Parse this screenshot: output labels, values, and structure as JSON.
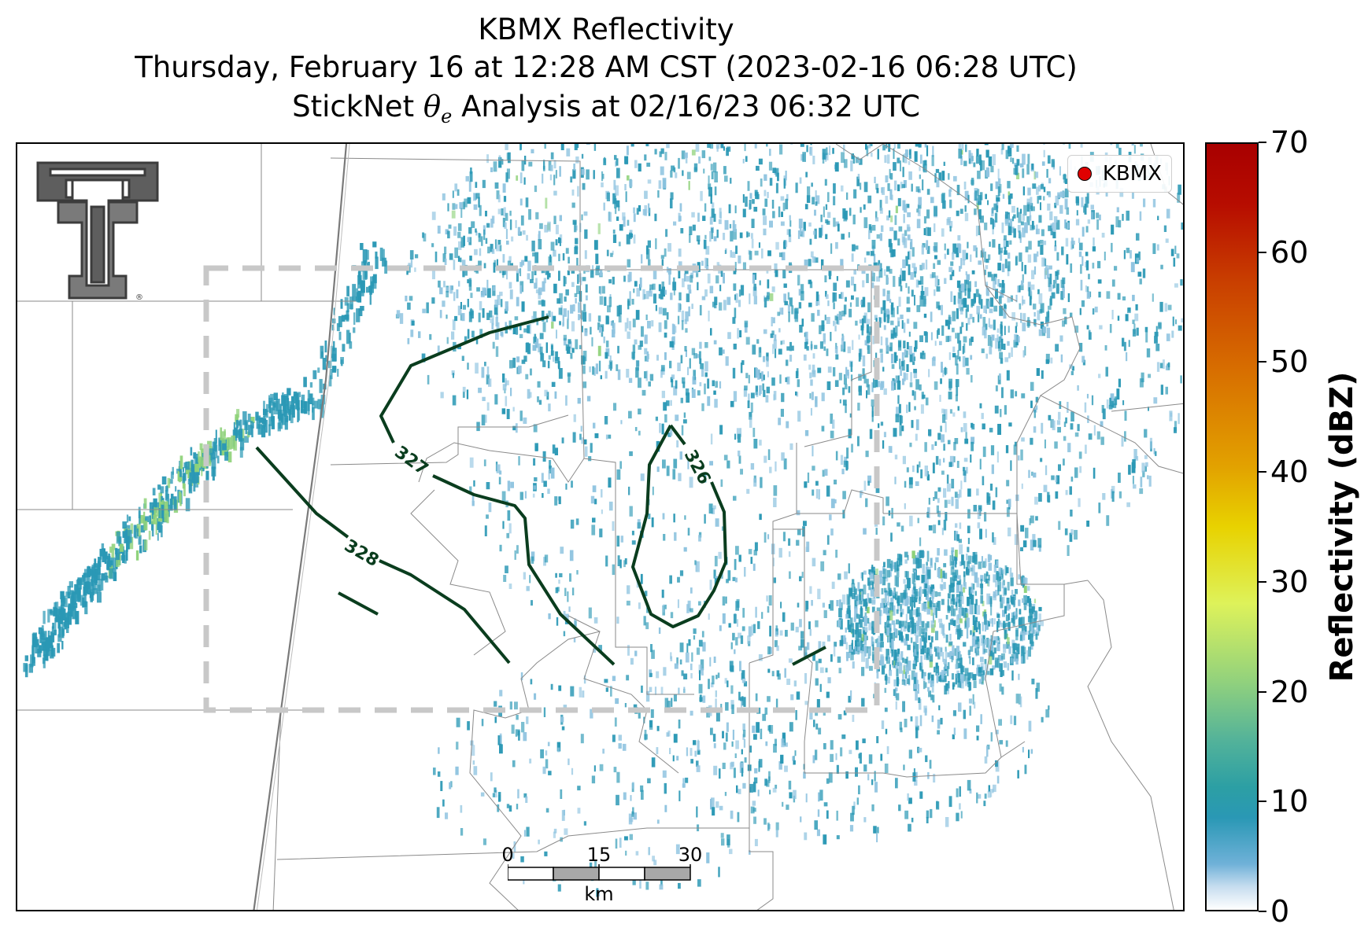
{
  "header": {
    "title1": "KBMX Reflectivity",
    "title2": "Thursday, February 16 at 12:28 AM CST (2023-02-16 06:28 UTC)",
    "title3_prefix": "StickNet ",
    "title3_theta": "θ",
    "title3_sub": "e",
    "title3_suffix": " Analysis at 02/16/23 06:32 UTC"
  },
  "legend": {
    "label": "KBMX",
    "marker_color": "#e00000"
  },
  "contours": {
    "color": "#0a3d1e",
    "labels": [
      "328",
      "327",
      "326"
    ]
  },
  "scalebar": {
    "ticks": [
      "0",
      "15",
      "30"
    ],
    "unit": "km"
  },
  "colorbar": {
    "title": "Reflectivity (dBZ)",
    "ticks": [
      "0",
      "10",
      "20",
      "30",
      "40",
      "50",
      "60",
      "70"
    ]
  },
  "colors": {
    "echo_main": "#2a98b5",
    "echo_light": "#8fc4e0",
    "echo_strong": "#8fd27a",
    "boundary": "#808080",
    "box": "#c8c8c8"
  },
  "logo": {
    "name": "texas-tech-double-t",
    "mark": "®"
  }
}
